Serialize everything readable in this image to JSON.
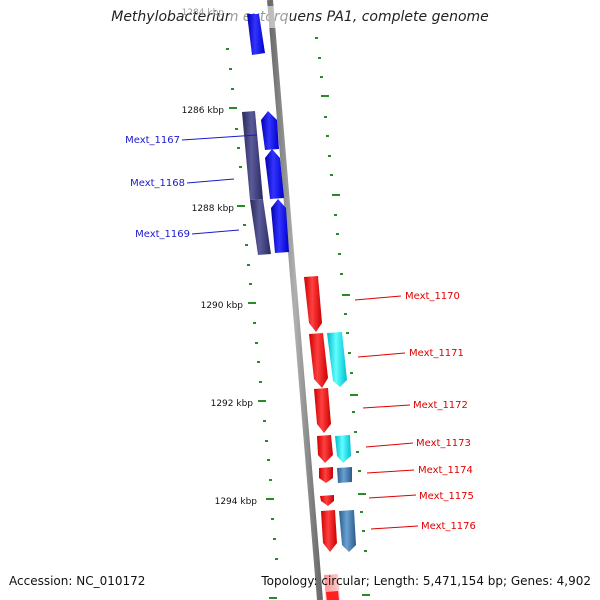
{
  "title": "Methylobacterium extorquens PA1, complete genome",
  "footer": {
    "accession": "Accession: NC_010172",
    "summary": "Topology: circular; Length: 5,471,154 bp; Genes: 4,902"
  },
  "ticks": [
    {
      "label": "1284 kbp",
      "kbp": 1284
    },
    {
      "label": "1286 kbp",
      "kbp": 1286
    },
    {
      "label": "1288 kbp",
      "kbp": 1288
    },
    {
      "label": "1290 kbp",
      "kbp": 1290
    },
    {
      "label": "1292 kbp",
      "kbp": 1292
    },
    {
      "label": "1294 kbp",
      "kbp": 1294
    }
  ],
  "genes": [
    {
      "name": "Mext_1167",
      "strand": "+",
      "color": "#0000cc"
    },
    {
      "name": "Mext_1168",
      "strand": "+",
      "color": "#0000cc"
    },
    {
      "name": "Mext_1169",
      "strand": "+",
      "color": "#0000cc"
    },
    {
      "name": "Mext_1170",
      "strand": "-",
      "color": "#e00000"
    },
    {
      "name": "Mext_1171",
      "strand": "-",
      "color": "#e00000"
    },
    {
      "name": "Mext_1172",
      "strand": "-",
      "color": "#e00000"
    },
    {
      "name": "Mext_1173",
      "strand": "-",
      "color": "#e00000"
    },
    {
      "name": "Mext_1174",
      "strand": "-",
      "color": "#e00000"
    },
    {
      "name": "Mext_1175",
      "strand": "-",
      "color": "#e00000"
    },
    {
      "name": "Mext_1176",
      "strand": "-",
      "color": "#e00000"
    }
  ],
  "colors": {
    "forward_cds": "#0000ff",
    "forward_gene": "#3a3a7a",
    "reverse_cds": "#ff0000",
    "reverse_product": "#00e0e0",
    "reverse_product_alt": "#3a7ab0",
    "backbone": "#8a8a8a",
    "tick_mark": "#2a7a2a"
  }
}
